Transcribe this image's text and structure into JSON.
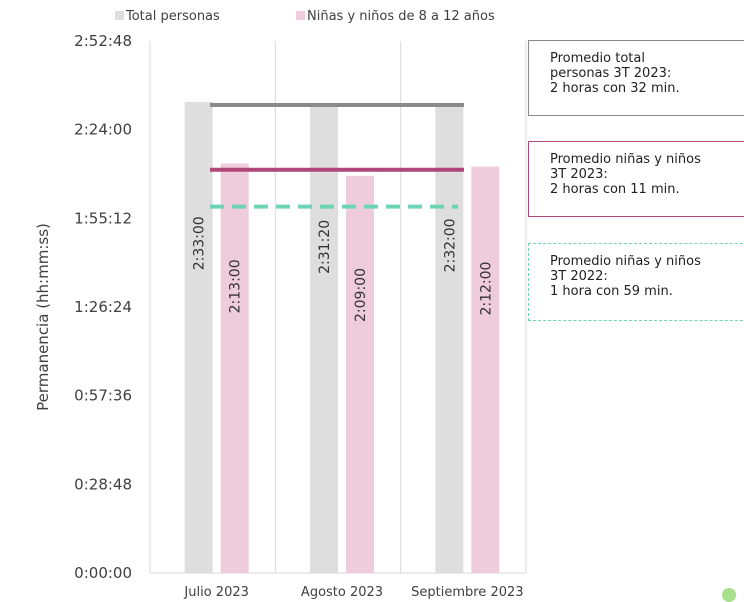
{
  "chart_data": {
    "type": "bar",
    "categories": [
      "Julio 2023",
      "Agosto 2023",
      "Septiembre 2023"
    ],
    "series": [
      {
        "name": "Total personas",
        "color": "#dedede",
        "values": [
          "2:33:00",
          "2:31:20",
          "2:32:00"
        ],
        "seconds": [
          9180,
          9080,
          9120
        ]
      },
      {
        "name": "Niñas y niños de 8 a 12 años",
        "color": "#efccdc",
        "values": [
          "2:13:00",
          "2:09:00",
          "2:12:00"
        ],
        "seconds": [
          7980,
          7740,
          7920
        ]
      }
    ],
    "ylabel": "Permanencia (hh:mm:ss)",
    "yticks": [
      "0:00:00",
      "0:28:48",
      "0:57:36",
      "1:26:24",
      "1:55:12",
      "2:24:00",
      "2:52:48"
    ],
    "yticks_seconds": [
      0,
      1728,
      3456,
      5184,
      6912,
      8640,
      10368
    ],
    "ylim_seconds": [
      0,
      10368
    ],
    "reference_lines": [
      {
        "id": "total",
        "seconds": 9120,
        "color": "#8a8a8e",
        "style": "solid"
      },
      {
        "id": "ninos23",
        "seconds": 7860,
        "color": "#b0467a",
        "style": "solid"
      },
      {
        "id": "ninos22",
        "seconds": 7140,
        "color": "#6fd3b8",
        "style": "dashed"
      }
    ],
    "annotations": {
      "total": [
        "Promedio total",
        "personas 3T 2023:",
        "2 horas con 32 min."
      ],
      "ninos23": [
        "Promedio niñas y niños",
        "3T 2023:",
        "2 horas con 11 min."
      ],
      "ninos22": [
        "Promedio niñas y niños",
        "3T 2022:",
        "1 hora con 59 min."
      ]
    },
    "legend_position": "top",
    "grid": "vertical"
  }
}
